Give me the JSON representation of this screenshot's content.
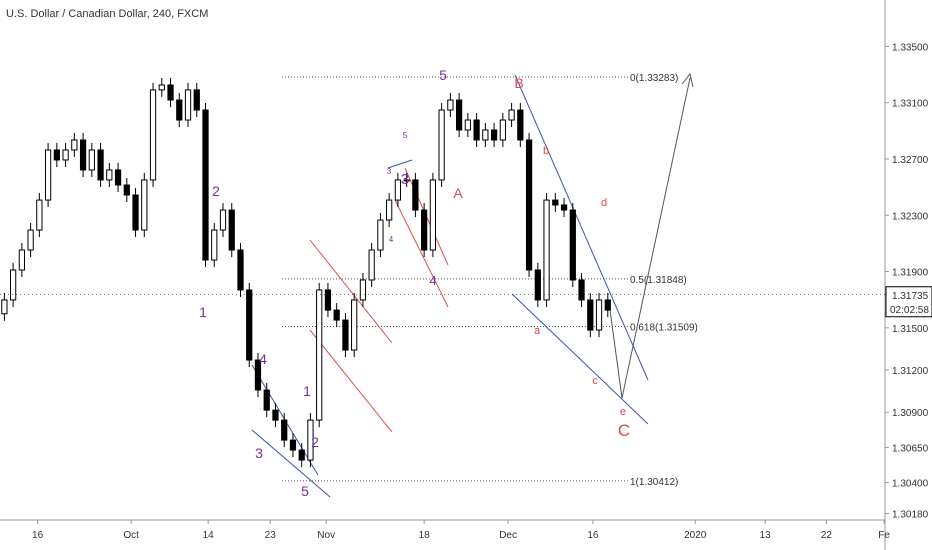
{
  "chart_data": {
    "type": "candlestick",
    "title": "U.S. Dollar / Canadian Dollar, 240, FXCM",
    "xlim": [
      -0.5,
      100.7
    ],
    "ylim": [
      1.30134,
      1.3383
    ],
    "xticks": [
      {
        "value": 3.8,
        "label": "16"
      },
      {
        "value": 14.5,
        "label": "Oct"
      },
      {
        "value": 23.3,
        "label": "14"
      },
      {
        "value": 30.4,
        "label": "23"
      },
      {
        "value": 36.8,
        "label": "Nov"
      },
      {
        "value": 48.0,
        "label": "18"
      },
      {
        "value": 57.6,
        "label": "Dec"
      },
      {
        "value": 67.3,
        "label": "16"
      },
      {
        "value": 79.0,
        "label": "2020"
      },
      {
        "value": 87.0,
        "label": "13"
      },
      {
        "value": 94.0,
        "label": "22"
      },
      {
        "value": 100.6,
        "label": "Fe"
      }
    ],
    "yticks": [
      {
        "value": 1.335,
        "label": "1.33500"
      },
      {
        "value": 1.331,
        "label": "1.33100"
      },
      {
        "value": 1.327,
        "label": "1.32700"
      },
      {
        "value": 1.323,
        "label": "1.32300"
      },
      {
        "value": 1.319,
        "label": "1.31900"
      },
      {
        "value": 1.315,
        "label": "1.31500"
      },
      {
        "value": 1.312,
        "label": "1.31200"
      },
      {
        "value": 1.309,
        "label": "1.30900"
      },
      {
        "value": 1.3065,
        "label": "1.30650"
      },
      {
        "value": 1.304,
        "label": "1.30400"
      },
      {
        "value": 1.3018,
        "label": "1.30180"
      }
    ],
    "open": [
      1.316,
      1.31698,
      1.31911,
      1.32053,
      1.32195,
      1.32408,
      1.32764,
      1.32693,
      1.32764,
      1.32835,
      1.32622,
      1.32764,
      1.32551,
      1.32622,
      1.32515,
      1.32444,
      1.32195,
      1.32551,
      1.33191,
      1.33226,
      1.33119,
      1.32977,
      1.33191,
      1.33048,
      1.31982,
      1.32195,
      1.32337,
      1.32053,
      1.31769,
      1.31271,
      1.31058,
      1.30915,
      1.30844,
      1.30702,
      1.30631,
      1.3056,
      1.30844,
      1.31769,
      1.31626,
      1.31555,
      1.31342,
      1.31698,
      1.3184,
      1.32053,
      1.32266,
      1.32408,
      1.32551,
      1.32551,
      1.32337,
      1.32053,
      1.32551,
      1.33048,
      1.33119,
      1.32906,
      1.32977,
      1.32835,
      1.32906,
      1.32835,
      1.32977,
      1.33048,
      1.32835,
      1.31911,
      1.31698,
      1.32408,
      1.32373,
      1.32337,
      1.3184,
      1.31698,
      1.31484,
      1.31698
    ],
    "high": [
      1.31748,
      1.31961,
      1.32103,
      1.32245,
      1.32458,
      1.32814,
      1.32814,
      1.32814,
      1.32885,
      1.32885,
      1.32814,
      1.32814,
      1.32672,
      1.32672,
      1.32565,
      1.32494,
      1.32601,
      1.33241,
      1.33276,
      1.33276,
      1.33169,
      1.33241,
      1.33241,
      1.33098,
      1.32245,
      1.32387,
      1.32387,
      1.32103,
      1.31819,
      1.31321,
      1.31108,
      1.30965,
      1.30894,
      1.30752,
      1.30681,
      1.30894,
      1.31819,
      1.31819,
      1.31676,
      1.31605,
      1.31748,
      1.3189,
      1.32103,
      1.32316,
      1.32458,
      1.32601,
      1.32601,
      1.32601,
      1.32387,
      1.32601,
      1.33098,
      1.33169,
      1.33169,
      1.33027,
      1.33027,
      1.32956,
      1.32956,
      1.33027,
      1.33098,
      1.33098,
      1.32885,
      1.31961,
      1.32458,
      1.32458,
      1.32423,
      1.32387,
      1.3189,
      1.31748,
      1.31748,
      1.31748
    ],
    "low": [
      1.3155,
      1.31648,
      1.31861,
      1.32003,
      1.32145,
      1.32358,
      1.32643,
      1.32643,
      1.32714,
      1.32572,
      1.32572,
      1.32501,
      1.32501,
      1.32465,
      1.32394,
      1.32145,
      1.32145,
      1.32501,
      1.33141,
      1.33069,
      1.32927,
      1.32927,
      1.32998,
      1.31932,
      1.31932,
      1.32145,
      1.32003,
      1.31719,
      1.31221,
      1.31008,
      1.30865,
      1.30794,
      1.30652,
      1.30581,
      1.3051,
      1.3051,
      1.30794,
      1.31576,
      1.31505,
      1.31292,
      1.31292,
      1.31648,
      1.3179,
      1.32003,
      1.32216,
      1.32358,
      1.32501,
      1.32287,
      1.32003,
      1.32003,
      1.32501,
      1.32998,
      1.32856,
      1.32856,
      1.32785,
      1.32785,
      1.32785,
      1.32785,
      1.32927,
      1.32785,
      1.31861,
      1.31648,
      1.31648,
      1.32323,
      1.32287,
      1.3179,
      1.31648,
      1.31434,
      1.31434,
      1.31576
    ],
    "close": [
      1.31698,
      1.31911,
      1.32053,
      1.32195,
      1.32408,
      1.32764,
      1.32693,
      1.32764,
      1.32835,
      1.32622,
      1.32764,
      1.32551,
      1.32622,
      1.32515,
      1.32444,
      1.32195,
      1.32551,
      1.33191,
      1.33226,
      1.33119,
      1.32977,
      1.33191,
      1.33048,
      1.31982,
      1.32195,
      1.32337,
      1.32053,
      1.31769,
      1.31271,
      1.31058,
      1.30915,
      1.30844,
      1.30702,
      1.30631,
      1.3056,
      1.30844,
      1.31769,
      1.31626,
      1.31555,
      1.31342,
      1.31698,
      1.3184,
      1.32053,
      1.32266,
      1.32408,
      1.32551,
      1.32551,
      1.32337,
      1.32053,
      1.32551,
      1.33048,
      1.33119,
      1.32906,
      1.32977,
      1.32835,
      1.32906,
      1.32835,
      1.32977,
      1.33048,
      1.32835,
      1.31911,
      1.31698,
      1.32408,
      1.32373,
      1.32337,
      1.3184,
      1.31698,
      1.31484,
      1.31698,
      1.31626
    ],
    "up_color": "#ffffff",
    "down_color": "#000000",
    "fib_levels": [
      {
        "value": 1.33283,
        "label": "0(1.33283)"
      },
      {
        "value": 1.31848,
        "label": "0.5(1.31848)"
      },
      {
        "value": 1.31509,
        "label": "0.618(1.31509)"
      },
      {
        "value": 1.30412,
        "label": "1(1.30412)"
      }
    ],
    "last_price": {
      "value": 1.31735,
      "label": "1.31735"
    },
    "countdown": "02:02:58",
    "annotations": [
      {
        "text": "1",
        "color": "#7b2d9e"
      },
      {
        "text": "2",
        "color": "#7b2d9e"
      },
      {
        "text": "3",
        "color": "#7b2d9e"
      },
      {
        "text": "4",
        "color": "#7b2d9e"
      },
      {
        "text": "5",
        "color": "#7b2d9e"
      },
      {
        "text": "1",
        "color": "#7b2d9e"
      },
      {
        "text": "2",
        "color": "#7b2d9e"
      },
      {
        "text": "3",
        "color": "#7b2d9e"
      },
      {
        "text": "4",
        "color": "#7b2d9e"
      },
      {
        "text": "5",
        "color": "#7b2d9e"
      },
      {
        "text": "A",
        "color": "#e04848"
      },
      {
        "text": "B",
        "color": "#e04848"
      },
      {
        "text": "a",
        "color": "#e04848"
      },
      {
        "text": "b",
        "color": "#e04848"
      },
      {
        "text": "c",
        "color": "#e04848"
      },
      {
        "text": "d",
        "color": "#e04848"
      },
      {
        "text": "e",
        "color": "#e04848"
      },
      {
        "text": "C",
        "color": "#e04848"
      },
      {
        "text": "3",
        "color": "#7b2d9e"
      },
      {
        "text": "5",
        "color": "#7b2d9e"
      },
      {
        "text": "4",
        "color": "#7b2d9e"
      }
    ]
  }
}
